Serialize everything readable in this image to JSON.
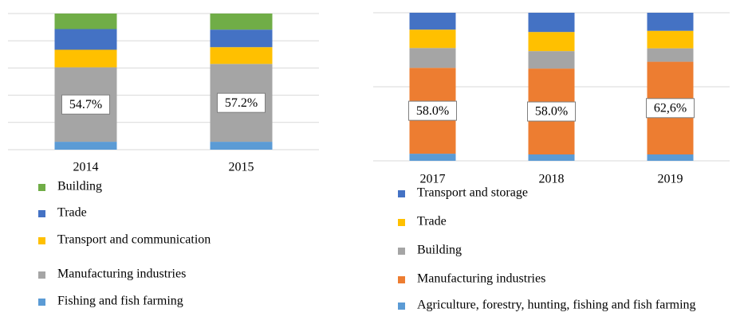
{
  "chart_data": [
    {
      "type": "stacked_bar",
      "categories": [
        "2014",
        "2015"
      ],
      "ylim": [
        0,
        100
      ],
      "yticks": [
        0,
        20,
        40,
        60,
        80,
        100
      ],
      "grid": true,
      "series": [
        {
          "name": "Fishing and fish farming",
          "color": "#5b9bd5",
          "values": [
            5.8,
            5.8
          ]
        },
        {
          "name": "Manufacturing industries",
          "color": "#a5a5a5",
          "values": [
            54.7,
            57.2
          ],
          "value_labels": [
            "54.7%",
            "57.2%"
          ]
        },
        {
          "name": "Transport and communication",
          "color": "#ffc000",
          "values": [
            12.9,
            12.3
          ]
        },
        {
          "name": "Trade",
          "color": "#4472c4",
          "values": [
            15.2,
            12.9
          ]
        },
        {
          "name": "Building",
          "color": "#70ad47",
          "values": [
            11.4,
            11.8
          ]
        }
      ]
    },
    {
      "type": "stacked_bar",
      "categories": [
        "2017",
        "2018",
        "2019"
      ],
      "ylim": [
        0,
        100
      ],
      "yticks": [
        0,
        50,
        100
      ],
      "grid": true,
      "series": [
        {
          "name": "Agriculture, forestry, hunting, fishing and fish farming",
          "color": "#5b9bd5",
          "values": [
            4.8,
            4.3,
            4.3
          ]
        },
        {
          "name": "Manufacturing industries",
          "color": "#ed7d31",
          "values": [
            58.0,
            58.0,
            62.6
          ],
          "value_labels": [
            "58.0%",
            "58.0%",
            "62,6%"
          ]
        },
        {
          "name": "Building",
          "color": "#a5a5a5",
          "values": [
            13.4,
            11.8,
            9.1
          ]
        },
        {
          "name": "Trade",
          "color": "#ffc000",
          "values": [
            12.4,
            12.9,
            11.8
          ]
        },
        {
          "name": "Transport and storage",
          "color": "#4472c4",
          "values": [
            11.4,
            13.0,
            12.2
          ]
        }
      ]
    }
  ]
}
